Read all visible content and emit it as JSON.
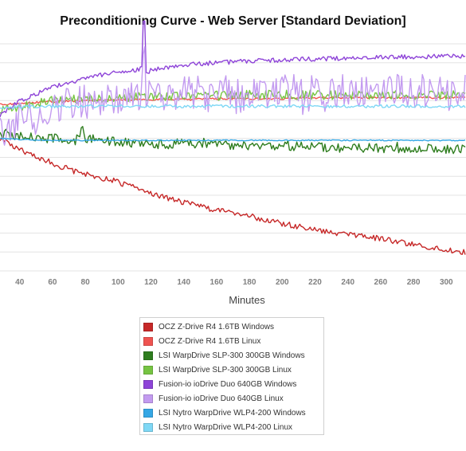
{
  "chart_data": {
    "type": "line",
    "title": "Preconditioning Curve - Web Server [Standard Deviation]",
    "xlabel": "Minutes",
    "ylabel": "",
    "xlim": [
      28,
      312
    ],
    "ylim": [
      0,
      12
    ],
    "x_ticks": [
      40,
      60,
      80,
      100,
      120,
      140,
      160,
      180,
      200,
      220,
      240,
      260,
      280,
      300
    ],
    "grid": true,
    "legend_position": "bottom",
    "series": [
      {
        "name": "OCZ Z-Drive R4 1.6TB Windows",
        "color": "#c62828",
        "points": [
          [
            28,
            5.0
          ],
          [
            40,
            5.6
          ],
          [
            60,
            6.3
          ],
          [
            75,
            6.8
          ],
          [
            100,
            7.3
          ],
          [
            120,
            7.9
          ],
          [
            140,
            8.4
          ],
          [
            160,
            8.8
          ],
          [
            180,
            9.1
          ],
          [
            200,
            9.5
          ],
          [
            220,
            9.8
          ],
          [
            240,
            10.1
          ],
          [
            260,
            10.3
          ],
          [
            280,
            10.6
          ],
          [
            300,
            10.9
          ],
          [
            310,
            11.0
          ]
        ]
      },
      {
        "name": "OCZ Z-Drive R4 1.6TB Linux",
        "color": "#ef5350",
        "points": [
          [
            28,
            3.2
          ],
          [
            40,
            3.15
          ],
          [
            60,
            3.05
          ],
          [
            80,
            3.0
          ],
          [
            100,
            2.95
          ],
          [
            120,
            2.95
          ],
          [
            140,
            2.95
          ],
          [
            160,
            2.9
          ],
          [
            180,
            2.9
          ],
          [
            200,
            2.9
          ],
          [
            220,
            2.85
          ],
          [
            240,
            2.85
          ],
          [
            260,
            2.85
          ],
          [
            280,
            2.85
          ],
          [
            300,
            2.85
          ],
          [
            310,
            2.85
          ]
        ]
      },
      {
        "name": "LSI WarpDrive SLP-300 300GB Windows",
        "color": "#2e7d1e",
        "points": [
          [
            28,
            4.8
          ],
          [
            40,
            4.9
          ],
          [
            60,
            5.0
          ],
          [
            76,
            5.1
          ],
          [
            78,
            4.4
          ],
          [
            80,
            5.0
          ],
          [
            100,
            5.2
          ],
          [
            120,
            5.3
          ],
          [
            140,
            5.3
          ],
          [
            160,
            5.35
          ],
          [
            180,
            5.4
          ],
          [
            200,
            5.4
          ],
          [
            220,
            5.45
          ],
          [
            240,
            5.5
          ],
          [
            260,
            5.5
          ],
          [
            280,
            5.55
          ],
          [
            300,
            5.55
          ],
          [
            310,
            5.6
          ]
        ]
      },
      {
        "name": "LSI WarpDrive SLP-300 300GB Linux",
        "color": "#76c442",
        "points": [
          [
            28,
            3.6
          ],
          [
            40,
            3.3
          ],
          [
            60,
            3.0
          ],
          [
            80,
            2.9
          ],
          [
            100,
            2.85
          ],
          [
            120,
            2.8
          ],
          [
            140,
            2.75
          ],
          [
            160,
            2.75
          ],
          [
            180,
            2.7
          ],
          [
            200,
            2.7
          ],
          [
            220,
            2.7
          ],
          [
            240,
            2.7
          ],
          [
            260,
            2.7
          ],
          [
            280,
            2.7
          ],
          [
            300,
            2.7
          ],
          [
            310,
            2.7
          ]
        ]
      },
      {
        "name": "Fusion-io ioDrive Duo 640GB Windows",
        "color": "#8e44d8",
        "points": [
          [
            28,
            3.8
          ],
          [
            40,
            3.0
          ],
          [
            60,
            2.3
          ],
          [
            80,
            1.8
          ],
          [
            100,
            1.5
          ],
          [
            110,
            1.4
          ],
          [
            114,
            1.3
          ],
          [
            116,
            -1.2
          ],
          [
            118,
            1.5
          ],
          [
            120,
            1.4
          ],
          [
            140,
            1.1
          ],
          [
            160,
            1.0
          ],
          [
            180,
            0.9
          ],
          [
            200,
            0.85
          ],
          [
            220,
            0.8
          ],
          [
            240,
            0.75
          ],
          [
            260,
            0.7
          ],
          [
            280,
            0.7
          ],
          [
            300,
            0.65
          ],
          [
            310,
            0.65
          ]
        ]
      },
      {
        "name": "Fusion-io ioDrive Duo 640GB Linux",
        "color": "#c39bf0",
        "points": [
          [
            28,
            4.8
          ],
          [
            40,
            4.0
          ],
          [
            60,
            3.3
          ],
          [
            80,
            3.0
          ],
          [
            100,
            2.9
          ],
          [
            114,
            2.6
          ],
          [
            116,
            1.0
          ],
          [
            118,
            2.7
          ],
          [
            140,
            2.6
          ],
          [
            160,
            2.6
          ],
          [
            180,
            2.55
          ],
          [
            200,
            2.5
          ],
          [
            220,
            2.5
          ],
          [
            240,
            2.5
          ],
          [
            260,
            2.5
          ],
          [
            280,
            2.5
          ],
          [
            300,
            2.5
          ],
          [
            310,
            2.5
          ]
        ]
      },
      {
        "name": "LSI Nytro WarpDrive WLP4-200 Windows",
        "color": "#35a7e5",
        "points": [
          [
            28,
            5.0
          ],
          [
            40,
            5.05
          ],
          [
            60,
            5.1
          ],
          [
            80,
            5.1
          ],
          [
            100,
            5.1
          ],
          [
            120,
            5.1
          ],
          [
            140,
            5.1
          ],
          [
            160,
            5.1
          ],
          [
            180,
            5.1
          ],
          [
            200,
            5.1
          ],
          [
            220,
            5.1
          ],
          [
            240,
            5.1
          ],
          [
            260,
            5.1
          ],
          [
            280,
            5.1
          ],
          [
            300,
            5.1
          ],
          [
            310,
            5.1
          ]
        ]
      },
      {
        "name": "LSI Nytro WarpDrive WLP4-200 Linux",
        "color": "#7fd8f5",
        "points": [
          [
            28,
            3.4
          ],
          [
            40,
            3.35
          ],
          [
            60,
            3.3
          ],
          [
            80,
            3.3
          ],
          [
            100,
            3.3
          ],
          [
            120,
            3.3
          ],
          [
            140,
            3.3
          ],
          [
            160,
            3.3
          ],
          [
            180,
            3.3
          ],
          [
            200,
            3.3
          ],
          [
            220,
            3.3
          ],
          [
            240,
            3.3
          ],
          [
            260,
            3.3
          ],
          [
            280,
            3.3
          ],
          [
            300,
            3.3
          ],
          [
            310,
            3.3
          ]
        ]
      }
    ]
  }
}
